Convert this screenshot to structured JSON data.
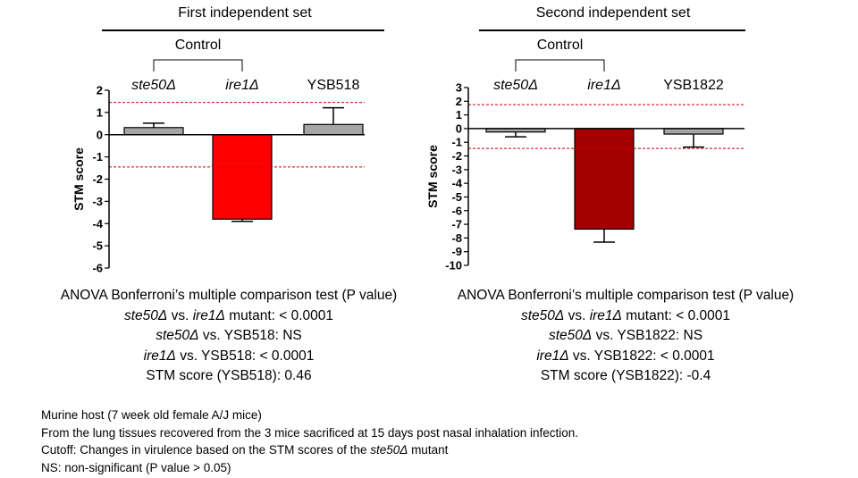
{
  "chart_data": [
    {
      "type": "bar",
      "title": "First independent set",
      "ylabel": "STM score",
      "xlabel": "",
      "ylim": [
        -6,
        2
      ],
      "yticks": [
        2,
        1,
        0,
        -1,
        -2,
        -3,
        -4,
        -5,
        -6
      ],
      "categories": [
        "ste50Δ",
        "ire1Δ",
        "YSB518"
      ],
      "italic_categories": [
        true,
        true,
        false
      ],
      "values": [
        0.32,
        -3.8,
        0.46
      ],
      "error": [
        0.2,
        0.1,
        0.75
      ],
      "error_direction": [
        "up",
        "down",
        "up"
      ],
      "bar_colors": [
        "#a6a6a6",
        "#ff0000",
        "#a6a6a6"
      ],
      "cutoff_lines": [
        1.45,
        -1.45
      ],
      "cutoff_color": "#cc0000",
      "control_label": "Control",
      "control_bracket": [
        "ste50Δ",
        "ire1Δ"
      ],
      "grid": false,
      "stats": [
        {
          "parts": [
            {
              "t": "ANOVA Bonferroni’s multiple comparison test (P value)",
              "i": false
            }
          ]
        },
        {
          "parts": [
            {
              "t": "ste50Δ",
              "i": true
            },
            {
              "t": " vs. ",
              "i": false
            },
            {
              "t": "ire1Δ",
              "i": true
            },
            {
              "t": " mutant: < 0.0001",
              "i": false
            }
          ]
        },
        {
          "parts": [
            {
              "t": "ste50Δ",
              "i": true
            },
            {
              "t": " vs. YSB518: NS",
              "i": false
            }
          ]
        },
        {
          "parts": [
            {
              "t": "ire1Δ",
              "i": true
            },
            {
              "t": " vs. YSB518: < 0.0001",
              "i": false
            }
          ]
        },
        {
          "parts": [
            {
              "t": "STM score (YSB518): 0.46",
              "i": false
            }
          ]
        }
      ]
    },
    {
      "type": "bar",
      "title": "Second independent set",
      "ylabel": "STM score",
      "xlabel": "",
      "ylim": [
        -10,
        3
      ],
      "yticks": [
        3,
        2,
        1,
        0,
        -1,
        -2,
        -3,
        -4,
        -5,
        -6,
        -7,
        -8,
        -9,
        -10
      ],
      "categories": [
        "ste50Δ",
        "ire1Δ",
        "YSB1822"
      ],
      "italic_categories": [
        true,
        true,
        false
      ],
      "values": [
        -0.25,
        -7.35,
        -0.4
      ],
      "error": [
        0.35,
        0.95,
        0.95
      ],
      "error_direction": [
        "down",
        "down",
        "down"
      ],
      "bar_colors": [
        "#a6a6a6",
        "#a50000",
        "#a6a6a6"
      ],
      "cutoff_lines": [
        1.75,
        -1.45
      ],
      "cutoff_color": "#cc0000",
      "control_label": "Control",
      "control_bracket": [
        "ste50Δ",
        "ire1Δ"
      ],
      "grid": false,
      "stats": [
        {
          "parts": [
            {
              "t": "ANOVA Bonferroni’s multiple comparison test (P value)",
              "i": false
            }
          ]
        },
        {
          "parts": [
            {
              "t": "ste50Δ",
              "i": true
            },
            {
              "t": " vs. ",
              "i": false
            },
            {
              "t": "ire1Δ",
              "i": true
            },
            {
              "t": " mutant: < 0.0001",
              "i": false
            }
          ]
        },
        {
          "parts": [
            {
              "t": "ste50Δ",
              "i": true
            },
            {
              "t": " vs. YSB1822:  NS",
              "i": false
            }
          ]
        },
        {
          "parts": [
            {
              "t": "ire1Δ",
              "i": true
            },
            {
              "t": " vs. YSB1822: < 0.0001",
              "i": false
            }
          ]
        },
        {
          "parts": [
            {
              "t": "STM score (YSB1822): -0.4",
              "i": false
            }
          ]
        }
      ]
    }
  ],
  "footer": {
    "line1": "Murine host (7 week old female A/J mice)",
    "line2": "From  the lung tissues recovered from the 3 mice sacrificed at 15 days post nasal inhalation infection.",
    "line3_prefix": "Cutoff: Changes in virulence based on the STM scores of the ",
    "line3_italic": "ste50Δ",
    "line3_suffix": " mutant",
    "line4": "NS: non-significant (P value > 0.05)"
  }
}
